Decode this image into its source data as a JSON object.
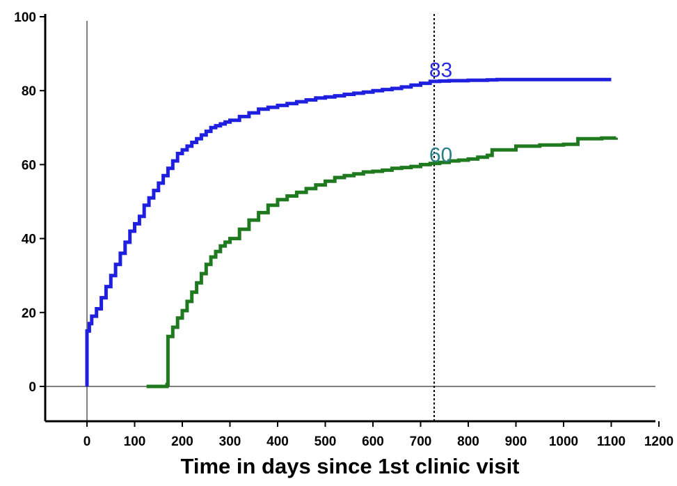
{
  "chart_data": {
    "type": "line",
    "title": "",
    "xlabel": "Time in days since 1st clinic visit",
    "ylabel": "",
    "xlim": [
      -100,
      1200
    ],
    "ylim": [
      -10,
      100
    ],
    "x_ticks": [
      0,
      100,
      200,
      300,
      400,
      500,
      600,
      700,
      800,
      900,
      1000,
      1100,
      1200
    ],
    "y_ticks": [
      0,
      20,
      40,
      60,
      80,
      100
    ],
    "grid": false,
    "legend": "none",
    "reference_lines": [
      {
        "orientation": "horizontal",
        "y": 0,
        "style": "solid"
      },
      {
        "orientation": "vertical",
        "x": 0,
        "style": "solid"
      },
      {
        "orientation": "vertical",
        "x": 730,
        "style": "dotted"
      }
    ],
    "series": [
      {
        "color": "#1f1fe0",
        "step": true,
        "x": [
          0,
          0,
          5,
          10,
          20,
          30,
          40,
          50,
          60,
          70,
          80,
          90,
          100,
          110,
          120,
          130,
          140,
          150,
          160,
          170,
          180,
          190,
          200,
          210,
          220,
          230,
          240,
          250,
          260,
          270,
          280,
          290,
          300,
          320,
          340,
          360,
          380,
          400,
          420,
          440,
          460,
          480,
          500,
          520,
          540,
          560,
          580,
          600,
          620,
          640,
          660,
          680,
          700,
          720,
          740,
          760,
          780,
          800,
          820,
          840,
          860,
          880,
          900,
          950,
          1000,
          1050,
          1100
        ],
        "y": [
          0,
          15,
          17,
          19,
          21,
          24,
          27,
          30,
          33,
          36,
          39,
          42,
          44,
          46,
          49,
          51,
          53,
          55,
          57,
          59,
          61,
          63,
          64,
          65,
          66,
          67,
          68,
          69,
          70,
          70.5,
          71,
          71.5,
          72,
          73,
          74,
          75,
          75.5,
          76,
          76.5,
          77,
          77.5,
          78,
          78.3,
          78.6,
          79,
          79.3,
          79.6,
          80,
          80.3,
          80.6,
          81,
          81.5,
          82,
          82.5,
          82.6,
          82.7,
          82.7,
          82.8,
          82.8,
          82.9,
          83,
          83,
          83,
          83,
          83,
          83,
          83
        ]
      },
      {
        "color": "#1f7a1f",
        "step": true,
        "x": [
          125,
          168,
          170,
          180,
          190,
          200,
          210,
          220,
          230,
          240,
          250,
          260,
          270,
          280,
          290,
          300,
          320,
          340,
          360,
          380,
          400,
          420,
          440,
          460,
          480,
          500,
          520,
          540,
          560,
          580,
          600,
          620,
          640,
          660,
          680,
          700,
          720,
          740,
          760,
          780,
          800,
          820,
          840,
          850,
          900,
          950,
          1000,
          1025,
          1030,
          1080,
          1110
        ],
        "y": [
          0,
          0.5,
          13.5,
          16,
          18.5,
          20.5,
          23,
          25.5,
          28,
          30.5,
          33,
          35,
          36.5,
          38,
          39,
          40,
          42.5,
          45,
          47,
          49,
          50.5,
          51.5,
          52.5,
          53.5,
          54.5,
          55.5,
          56.5,
          57,
          57.5,
          58,
          58.2,
          58.5,
          59,
          59.2,
          59.5,
          60,
          60.3,
          60.6,
          61,
          61.2,
          61.5,
          62,
          62.5,
          64,
          65,
          65.3,
          65.5,
          65.5,
          67,
          67.2,
          67.3
        ]
      }
    ],
    "annotations": [
      {
        "text": "83",
        "x": 718,
        "y": 83,
        "color": "#2a2ae0"
      },
      {
        "text": "60",
        "x": 718,
        "y": 60,
        "color": "#2a7f8a"
      }
    ]
  }
}
